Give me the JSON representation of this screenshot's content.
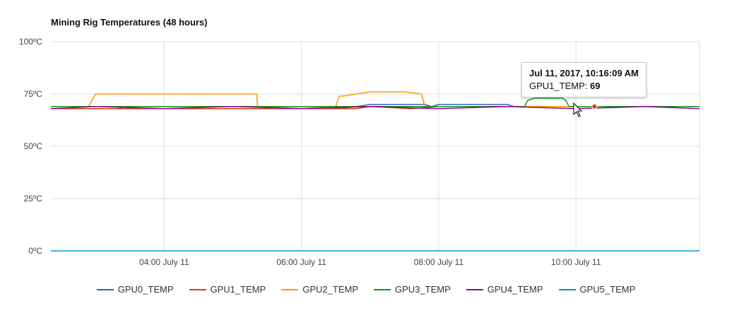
{
  "chart_data": {
    "type": "line",
    "title": "Mining Rig Temperatures (48 hours)",
    "xlabel": "",
    "ylabel": "",
    "ylim": [
      0,
      100
    ],
    "y_ticks": [
      "0ºC",
      "25ºC",
      "50ºC",
      "75ºC",
      "100ºC"
    ],
    "y_tick_values": [
      0,
      25,
      50,
      75,
      100
    ],
    "x_range_hours": [
      2.35,
      11.8
    ],
    "x_ticks": [
      {
        "label": "04:00 July 11",
        "hour": 4
      },
      {
        "label": "06:00 July 11",
        "hour": 6
      },
      {
        "label": "08:00 July 11",
        "hour": 8
      },
      {
        "label": "10:00 July 11",
        "hour": 10
      }
    ],
    "grid": true,
    "legend_position": "bottom",
    "series": [
      {
        "name": "GPU0_TEMP",
        "color": "#3366cc",
        "points": [
          [
            2.35,
            69
          ],
          [
            3.3,
            69
          ],
          [
            3.4,
            68
          ],
          [
            6.5,
            68
          ],
          [
            6.8,
            69
          ],
          [
            7.0,
            70
          ],
          [
            7.8,
            70
          ],
          [
            7.9,
            69
          ],
          [
            8.0,
            70
          ],
          [
            9.0,
            70
          ],
          [
            9.1,
            69
          ],
          [
            10.0,
            69
          ],
          [
            10.5,
            69
          ],
          [
            11.8,
            69
          ]
        ]
      },
      {
        "name": "GPU1_TEMP",
        "color": "#dc3912",
        "points": [
          [
            2.35,
            68
          ],
          [
            3.0,
            68
          ],
          [
            5.0,
            68
          ],
          [
            6.5,
            68
          ],
          [
            6.8,
            68
          ],
          [
            7.0,
            69
          ],
          [
            7.6,
            68
          ],
          [
            8.0,
            69
          ],
          [
            9.0,
            69
          ],
          [
            9.8,
            69
          ],
          [
            10.2,
            69
          ],
          [
            11.0,
            69
          ],
          [
            11.8,
            69
          ]
        ]
      },
      {
        "name": "GPU2_TEMP",
        "color": "#ff9900",
        "points": [
          [
            2.35,
            69
          ],
          [
            2.9,
            69
          ],
          [
            2.95,
            72
          ],
          [
            3.0,
            75
          ],
          [
            3.5,
            75
          ],
          [
            4.0,
            75
          ],
          [
            5.0,
            75
          ],
          [
            5.35,
            75
          ],
          [
            5.36,
            69
          ],
          [
            6.0,
            68
          ],
          [
            6.5,
            69
          ],
          [
            6.55,
            74
          ],
          [
            6.6,
            74
          ],
          [
            6.8,
            75
          ],
          [
            7.0,
            76
          ],
          [
            7.5,
            76
          ],
          [
            7.75,
            75
          ],
          [
            7.8,
            69
          ],
          [
            8.0,
            69
          ],
          [
            9.0,
            69
          ],
          [
            10.0,
            69
          ],
          [
            11.8,
            69
          ]
        ]
      },
      {
        "name": "GPU3_TEMP",
        "color": "#109618",
        "points": [
          [
            2.35,
            69
          ],
          [
            5.0,
            69
          ],
          [
            6.0,
            69
          ],
          [
            7.0,
            69
          ],
          [
            8.0,
            69
          ],
          [
            9.0,
            69
          ],
          [
            9.25,
            69
          ],
          [
            9.3,
            72
          ],
          [
            9.4,
            73
          ],
          [
            9.8,
            73
          ],
          [
            9.85,
            72
          ],
          [
            9.9,
            69
          ],
          [
            10.0,
            69
          ],
          [
            11.8,
            69
          ]
        ]
      },
      {
        "name": "GPU4_TEMP",
        "color": "#990099",
        "points": [
          [
            2.35,
            68
          ],
          [
            3.0,
            69
          ],
          [
            4.0,
            68
          ],
          [
            5.0,
            69
          ],
          [
            6.0,
            68
          ],
          [
            7.0,
            69
          ],
          [
            8.0,
            68
          ],
          [
            9.0,
            69
          ],
          [
            10.0,
            68
          ],
          [
            11.0,
            69
          ],
          [
            11.8,
            68
          ]
        ]
      },
      {
        "name": "GPU5_TEMP",
        "color": "#0099c6",
        "points": [
          [
            2.35,
            0
          ],
          [
            11.8,
            0
          ]
        ]
      }
    ]
  },
  "tooltip": {
    "date": "Jul 11, 2017, 10:16:09 AM",
    "series_label": "GPU1_TEMP:",
    "value": "69"
  }
}
